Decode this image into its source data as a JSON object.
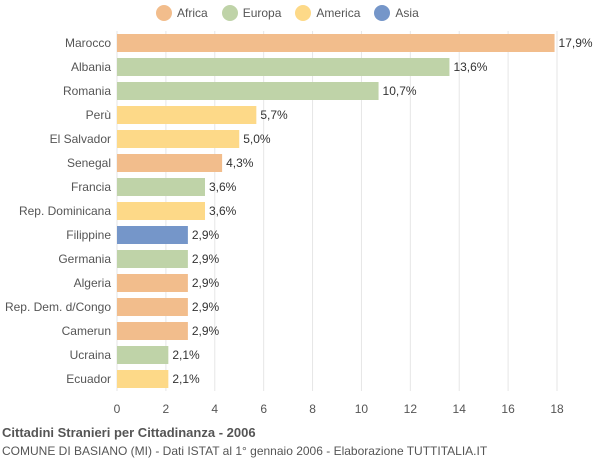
{
  "legend": [
    {
      "label": "Africa",
      "color": "#f2bd8c"
    },
    {
      "label": "Europa",
      "color": "#bfd3a8"
    },
    {
      "label": "America",
      "color": "#fdd988"
    },
    {
      "label": "Asia",
      "color": "#7596c9"
    }
  ],
  "footer": {
    "title": "Cittadini Stranieri per Cittadinanza - 2006",
    "subtitle": "COMUNE DI BASIANO (MI) - Dati ISTAT al 1° gennaio 2006 - Elaborazione TUTTITALIA.IT"
  },
  "chart_data": {
    "type": "bar",
    "orientation": "horizontal",
    "title": "Cittadini Stranieri per Cittadinanza - 2006",
    "xlim": [
      0,
      18
    ],
    "xticks": [
      0,
      2,
      4,
      6,
      8,
      10,
      12,
      14,
      16,
      18
    ],
    "grid": true,
    "legend_position": "top",
    "categories": [
      "Marocco",
      "Albania",
      "Romania",
      "Perù",
      "El Salvador",
      "Senegal",
      "Francia",
      "Rep. Dominicana",
      "Filippine",
      "Germania",
      "Algeria",
      "Rep. Dem. d/Congo",
      "Camerun",
      "Ucraina",
      "Ecuador"
    ],
    "values": [
      17.9,
      13.6,
      10.7,
      5.7,
      5.0,
      4.3,
      3.6,
      3.6,
      2.9,
      2.9,
      2.9,
      2.9,
      2.9,
      2.1,
      2.1
    ],
    "labels": [
      "17,9%",
      "13,6%",
      "10,7%",
      "5,7%",
      "5,0%",
      "4,3%",
      "3,6%",
      "3,6%",
      "2,9%",
      "2,9%",
      "2,9%",
      "2,9%",
      "2,9%",
      "2,1%",
      "2,1%"
    ],
    "groups": [
      "Africa",
      "Europa",
      "Europa",
      "America",
      "America",
      "Africa",
      "Europa",
      "America",
      "Asia",
      "Europa",
      "Africa",
      "Africa",
      "Africa",
      "Europa",
      "America"
    ]
  }
}
